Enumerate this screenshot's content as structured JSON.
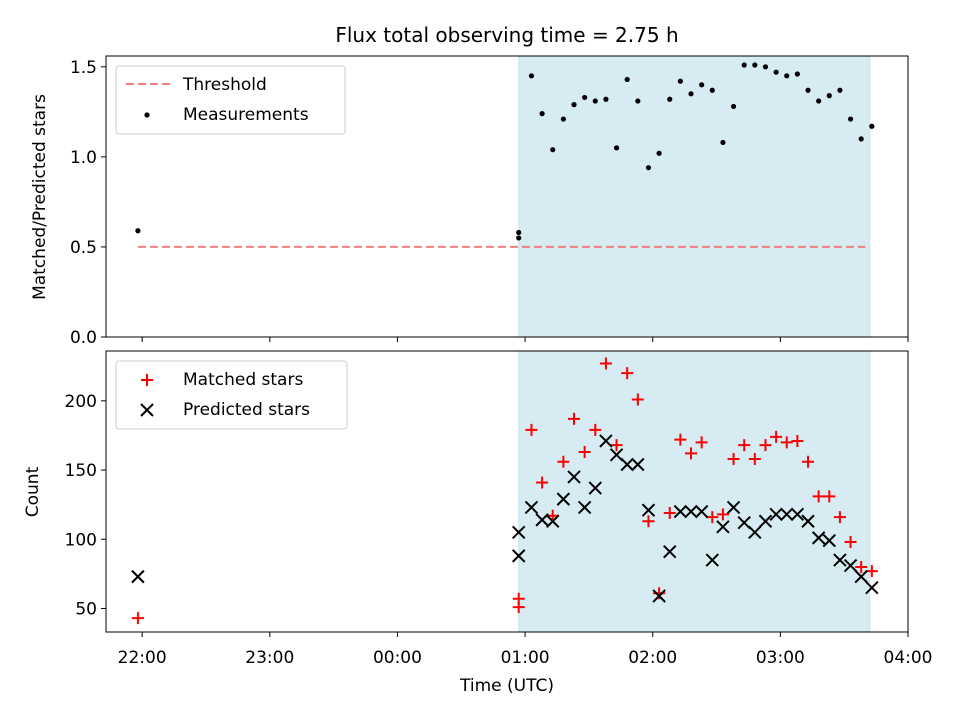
{
  "title": "Flux total observing time = 2.75 h",
  "xlabel": "Time (UTC)",
  "x_tick_labels": [
    "22:00",
    "23:00",
    "00:00",
    "01:00",
    "02:00",
    "03:00",
    "04:00"
  ],
  "colors": {
    "shade": "#add8e6",
    "threshold": "#f08080",
    "matched": "#ff0000",
    "predicted": "#000000",
    "measurement": "#000000"
  },
  "chart_data": [
    {
      "type": "scatter",
      "panel": "top",
      "ylabel": "Matched/Predicted stars",
      "ylim": [
        0,
        1.56
      ],
      "yticks": [
        0.0,
        0.5,
        1.0,
        1.5
      ],
      "ytick_labels": [
        "0.0",
        "0.5",
        "1.0",
        "1.5"
      ],
      "xlim": [
        "21:43",
        "04:00"
      ],
      "legend_position": "top-left",
      "shaded_interval": [
        "00:57",
        "03:42"
      ],
      "threshold": {
        "name": "Threshold",
        "y": 0.5,
        "x_range": [
          "21:58",
          "03:40"
        ]
      },
      "series": [
        {
          "name": "Measurements",
          "x": [
            "21:58",
            "00:57",
            "00:57",
            "01:03",
            "01:08",
            "01:13",
            "01:18",
            "01:23",
            "01:28",
            "01:33",
            "01:38",
            "01:43",
            "01:48",
            "01:53",
            "01:58",
            "02:03",
            "02:08",
            "02:13",
            "02:18",
            "02:23",
            "02:28",
            "02:33",
            "02:38",
            "02:43",
            "02:48",
            "02:53",
            "02:58",
            "03:03",
            "03:08",
            "03:13",
            "03:18",
            "03:23",
            "03:28",
            "03:33",
            "03:38",
            "03:43"
          ],
          "y": [
            0.59,
            0.58,
            0.55,
            1.45,
            1.24,
            1.04,
            1.21,
            1.29,
            1.33,
            1.31,
            1.32,
            1.05,
            1.43,
            1.31,
            0.94,
            1.02,
            1.32,
            1.42,
            1.35,
            1.4,
            1.37,
            1.08,
            1.28,
            1.51,
            1.51,
            1.5,
            1.47,
            1.45,
            1.46,
            1.37,
            1.31,
            1.34,
            1.37,
            1.21,
            1.1,
            1.17
          ]
        }
      ]
    },
    {
      "type": "scatter",
      "panel": "bottom",
      "ylabel": "Count",
      "ylim": [
        33,
        236
      ],
      "yticks": [
        50,
        100,
        150,
        200
      ],
      "ytick_labels": [
        "50",
        "100",
        "150",
        "200"
      ],
      "xlim": [
        "21:43",
        "04:00"
      ],
      "legend_position": "top-left",
      "shaded_interval": [
        "00:57",
        "03:42"
      ],
      "series": [
        {
          "name": "Matched stars",
          "marker": "+",
          "x": [
            "21:58",
            "00:57",
            "00:57",
            "01:03",
            "01:08",
            "01:13",
            "01:18",
            "01:23",
            "01:28",
            "01:33",
            "01:38",
            "01:43",
            "01:48",
            "01:53",
            "01:58",
            "02:03",
            "02:08",
            "02:13",
            "02:18",
            "02:23",
            "02:28",
            "02:33",
            "02:38",
            "02:43",
            "02:48",
            "02:53",
            "02:58",
            "03:03",
            "03:08",
            "03:13",
            "03:18",
            "03:23",
            "03:28",
            "03:33",
            "03:38",
            "03:43"
          ],
          "y": [
            43,
            51,
            57,
            179,
            141,
            117,
            156,
            187,
            163,
            179,
            227,
            168,
            220,
            201,
            113,
            61,
            119,
            172,
            162,
            170,
            116,
            118,
            158,
            168,
            158,
            168,
            174,
            170,
            171,
            156,
            131,
            131,
            116,
            98,
            80,
            77
          ]
        },
        {
          "name": "Predicted stars",
          "marker": "x",
          "x": [
            "21:58",
            "00:57",
            "00:57",
            "01:03",
            "01:08",
            "01:13",
            "01:18",
            "01:23",
            "01:28",
            "01:33",
            "01:38",
            "01:43",
            "01:48",
            "01:53",
            "01:58",
            "02:03",
            "02:08",
            "02:13",
            "02:18",
            "02:23",
            "02:28",
            "02:33",
            "02:38",
            "02:43",
            "02:48",
            "02:53",
            "02:58",
            "03:03",
            "03:08",
            "03:13",
            "03:18",
            "03:23",
            "03:28",
            "03:33",
            "03:38",
            "03:43"
          ],
          "y": [
            73,
            88,
            105,
            123,
            114,
            113,
            129,
            145,
            123,
            137,
            171,
            161,
            154,
            154,
            121,
            59,
            91,
            120,
            120,
            120,
            85,
            109,
            123,
            112,
            105,
            113,
            118,
            118,
            118,
            113,
            101,
            99,
            85,
            81,
            73,
            65
          ]
        }
      ]
    }
  ]
}
